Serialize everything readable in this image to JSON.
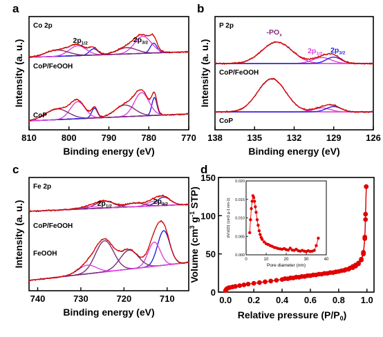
{
  "chart_data": [
    {
      "panel": "a",
      "type": "line",
      "element_label": "Co 2p",
      "xlabel": "Binding energy (eV)",
      "ylabel": "Intensity (a. u.)",
      "xlim": [
        810,
        770
      ],
      "x_ticks": [
        810,
        800,
        790,
        780,
        770
      ],
      "peak_labels": [
        {
          "text": "2p",
          "sub": "1/2",
          "x": 797.5
        },
        {
          "text": "2p",
          "sub": "3/2",
          "x": 781
        }
      ],
      "curve_labels": [
        "CoP/FeOOH",
        "CoP"
      ],
      "series": [
        {
          "name": "CoP/FeOOH",
          "color": "#cc0000",
          "peaks": [
            [
              778.8,
              1.2,
              0.55
            ],
            [
              781.5,
              3.0,
              0.95
            ],
            [
              785.5,
              3.5,
              0.35
            ],
            [
              793.8,
              1.5,
              0.35
            ],
            [
              797.8,
              3.0,
              0.55
            ],
            [
              803.0,
              4.0,
              0.35
            ]
          ]
        },
        {
          "name": "CoP",
          "color": "#cc0000",
          "peaks": [
            [
              778.6,
              0.9,
              1.0
            ],
            [
              781.8,
              2.6,
              1.3
            ],
            [
              786.0,
              3.5,
              0.65
            ],
            [
              793.6,
              1.0,
              0.55
            ],
            [
              797.8,
              2.6,
              0.95
            ],
            [
              803.0,
              4.0,
              0.6
            ]
          ]
        }
      ]
    },
    {
      "panel": "b",
      "type": "line",
      "element_label": "P 2p",
      "xlabel": "Binding energy (eV)",
      "ylabel": "Intensity (a. u.)",
      "xlim": [
        138,
        126
      ],
      "x_ticks": [
        138,
        135,
        132,
        129,
        126
      ],
      "peak_labels": [
        {
          "text": "-PO",
          "sub": "x",
          "x": 133.3
        },
        {
          "text": "2p",
          "sub": "1/2",
          "x": 130.1
        },
        {
          "text": "2p",
          "sub": "3/2",
          "x": 129.0
        }
      ],
      "curve_labels": [
        "CoP/FeOOH",
        "CoP"
      ],
      "series": [
        {
          "name": "CoP/FeOOH",
          "color": "#cc0000",
          "peaks": [
            [
              133.3,
              1.6,
              1.0
            ],
            [
              129.9,
              1.0,
              0.28
            ],
            [
              129.0,
              0.8,
              0.3
            ]
          ]
        },
        {
          "name": "CoP",
          "color": "#cc0000",
          "peaks": [
            [
              133.7,
              1.5,
              1.0
            ],
            [
              129.9,
              0.9,
              0.12
            ],
            [
              129.0,
              0.8,
              0.16
            ]
          ]
        }
      ]
    },
    {
      "panel": "c",
      "type": "line",
      "element_label": "Fe 2p",
      "xlabel": "Binding energy (eV)",
      "ylabel": "Intensity (a. u.)",
      "xlim": [
        742,
        705
      ],
      "x_ticks": [
        740,
        730,
        720,
        710
      ],
      "peak_labels": [
        {
          "text": "2p",
          "sub": "1/2",
          "x": 724.5
        },
        {
          "text": "2p",
          "sub": "3/2",
          "x": 711.5
        }
      ],
      "curve_labels": [
        "CoP/FeOOH",
        "FeOOH"
      ],
      "series": [
        {
          "name": "CoP/FeOOH",
          "color": "#cc0000",
          "peaks": [
            [
              710.8,
              2.2,
              0.55
            ],
            [
              713.2,
              2.0,
              0.3
            ],
            [
              717.5,
              3.0,
              0.25
            ],
            [
              724.5,
              3.0,
              0.45
            ],
            [
              728.0,
              3.0,
              0.12
            ]
          ]
        },
        {
          "name": "FeOOH",
          "color": "#cc0000",
          "peaks": [
            [
              710.8,
              2.0,
              1.0
            ],
            [
              713.0,
              2.0,
              0.7
            ],
            [
              718.8,
              3.0,
              0.55
            ],
            [
              724.5,
              3.0,
              0.9
            ],
            [
              728.5,
              3.0,
              0.25
            ]
          ]
        }
      ]
    },
    {
      "panel": "d",
      "type": "line",
      "xlabel": "Relative pressure (P/P0)",
      "ylabel": "Volume (cm3 g-1 STP)",
      "xlim": [
        -0.05,
        1.05
      ],
      "ylim": [
        0,
        150
      ],
      "x_ticks": [
        0.0,
        0.2,
        0.4,
        0.6,
        0.8,
        1.0
      ],
      "y_ticks": [
        0,
        50,
        100,
        150
      ],
      "series": [
        {
          "name": "adsorption",
          "color": "#e00000",
          "x": [
            0.0,
            0.005,
            0.01,
            0.02,
            0.03,
            0.05,
            0.07,
            0.1,
            0.13,
            0.16,
            0.2,
            0.24,
            0.28,
            0.32,
            0.36,
            0.4,
            0.44,
            0.48,
            0.52,
            0.56,
            0.6,
            0.64,
            0.68,
            0.72,
            0.76,
            0.8,
            0.84,
            0.87,
            0.9,
            0.92,
            0.94,
            0.96,
            0.975,
            0.985,
            0.99,
            0.995
          ],
          "y": [
            2,
            3.5,
            4.5,
            5.5,
            6,
            6.8,
            7.5,
            8.5,
            9.5,
            10.5,
            11.5,
            12.5,
            13.5,
            14.5,
            15.5,
            16.5,
            17.5,
            18.5,
            19.5,
            20.5,
            21.5,
            22.5,
            23.5,
            24.5,
            25.5,
            27,
            28.5,
            30,
            32,
            34,
            37,
            42,
            50,
            70,
            95,
            138
          ]
        },
        {
          "name": "desorption",
          "color": "#e00000",
          "x": [
            0.995,
            0.99,
            0.985,
            0.975,
            0.96,
            0.94,
            0.92,
            0.9,
            0.88,
            0.85,
            0.82,
            0.78,
            0.74,
            0.7,
            0.66,
            0.62,
            0.58,
            0.54,
            0.5,
            0.46,
            0.42
          ],
          "y": [
            138,
            102,
            72,
            52,
            43,
            38,
            35.5,
            33.5,
            31.5,
            29.5,
            28,
            26.5,
            25.5,
            24.5,
            23.5,
            22.5,
            21.5,
            20.5,
            19.6,
            18.6,
            17.6
          ]
        }
      ],
      "inset": {
        "xlabel": "Pore diameter (nm)",
        "ylabel": "dV/d(D) (cm3 g-1 nm-1)",
        "xlim": [
          0,
          40
        ],
        "ylim": [
          0,
          0.02
        ],
        "x_ticks": [
          0,
          10,
          20,
          30,
          40
        ],
        "y_ticks": [
          0.0,
          0.005,
          0.01,
          0.015,
          0.02
        ],
        "x": [
          1.8,
          2.2,
          2.6,
          3.0,
          3.4,
          3.8,
          4.2,
          4.6,
          5.0,
          5.5,
          6.0,
          6.5,
          7.0,
          7.5,
          8.0,
          9.0,
          10.0,
          11.0,
          12.0,
          13.0,
          14.0,
          15.0,
          16.0,
          17.0,
          18.0,
          19.0,
          20.0,
          21.0,
          22.0,
          23.0,
          24.0,
          25.0,
          26.0,
          27.0,
          28.0,
          29.0,
          30.0,
          31.0,
          32.0,
          33.0,
          34.0,
          35.0,
          36.0
        ],
        "y": [
          0.006,
          0.0095,
          0.0125,
          0.0145,
          0.016,
          0.0155,
          0.0145,
          0.013,
          0.0115,
          0.0095,
          0.008,
          0.0065,
          0.0055,
          0.0047,
          0.0042,
          0.0035,
          0.003,
          0.0028,
          0.0025,
          0.0023,
          0.002,
          0.0019,
          0.0017,
          0.0016,
          0.0015,
          0.0017,
          0.0014,
          0.0013,
          0.0018,
          0.0013,
          0.0012,
          0.0015,
          0.0011,
          0.001,
          0.0012,
          0.001,
          0.0009,
          0.0011,
          0.0009,
          0.001,
          0.0012,
          0.0025,
          0.0045
        ]
      }
    }
  ]
}
